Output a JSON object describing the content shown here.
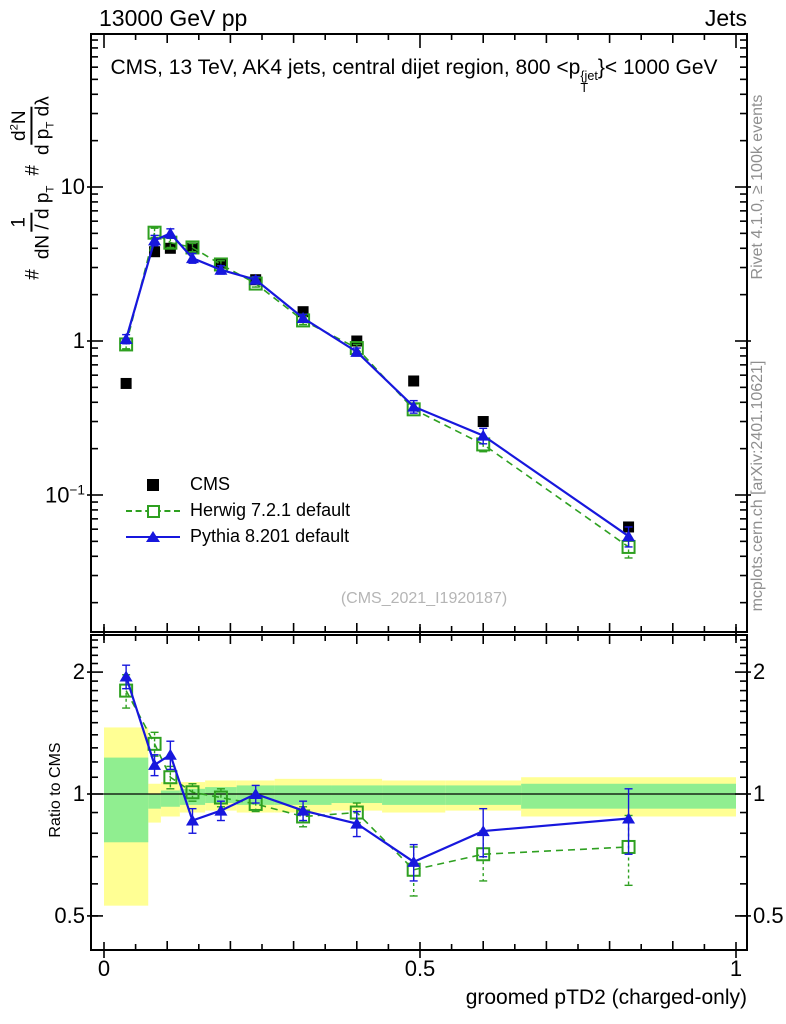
{
  "header": {
    "beam": "13000 GeV pp",
    "process": "Jets"
  },
  "title": {
    "prefix": "CMS, 13 TeV, AK4 jets, central dijet region, 800 <p",
    "sup": "{jet",
    "sub": "T",
    "suffix": "}< 1000 GeV"
  },
  "ylabel": {
    "hash1": "#",
    "frac1": {
      "num": "1",
      "den": "dN / d p",
      "den_sub": "T"
    },
    "hash2": "#",
    "frac2": {
      "num_a": "d",
      "num_sup": "2",
      "num_b": "N",
      "den_a": "d p",
      "den_sub": "T",
      "den_b": " dλ"
    }
  },
  "axes": {
    "x": {
      "tick_labels": [
        "0",
        "0.5",
        "1"
      ],
      "label": "groomed pTD2 (charged-only)"
    },
    "y_main": {
      "tick_top": "10",
      "tick_mid": "1",
      "tick_low_base": "10",
      "tick_low_sup": "−1"
    },
    "y_ratio": {
      "tick_labels": [
        "2",
        "1",
        "0.5"
      ],
      "label": "Ratio to CMS"
    }
  },
  "legend": {
    "items": [
      {
        "label": "CMS",
        "marker": "black-filled-square"
      },
      {
        "label": "Herwig 7.2.1 default",
        "marker": "green-dashed-line-open-square"
      },
      {
        "label": "Pythia 8.201 default",
        "marker": "blue-solid-line-filled-triangle"
      }
    ]
  },
  "watermark": "(CMS_2021_I1920187)",
  "sidebar": {
    "top": "Rivet 4.1.0, ≥ 100k events",
    "bottom": "mcplots.cern.ch [arXiv:2401.10621]"
  },
  "colors": {
    "cms": "#000000",
    "herwig": "#2ea020",
    "pythia": "#1717dd",
    "band_yellow": "#ffff94",
    "band_green": "#90ee90",
    "side_text": "#8f8f8f",
    "watermark": "#b5b5b5"
  },
  "chart_data": {
    "type": "line",
    "title": "CMS, 13 TeV, AK4 jets, central dijet region, 800 < pT{jet} < 1000 GeV",
    "xlabel": "groomed pTD2 (charged-only)",
    "ylabel": "# 1/(dN/dpT) # d2N/(dpT dlambda)",
    "xlim": [
      -0.02,
      1.017
    ],
    "ylim_main": [
      0.013,
      100
    ],
    "ylim_ratio": [
      0.41,
      2.48
    ],
    "x": [
      0.035,
      0.08,
      0.105,
      0.14,
      0.185,
      0.24,
      0.315,
      0.4,
      0.49,
      0.6,
      0.83
    ],
    "bin_edges": [
      0,
      0.07,
      0.09,
      0.12,
      0.16,
      0.21,
      0.27,
      0.36,
      0.44,
      0.54,
      0.66,
      1.0
    ],
    "series": [
      {
        "name": "CMS",
        "values": [
          0.53,
          3.8,
          4.0,
          4.0,
          3.2,
          2.5,
          1.55,
          1.0,
          0.55,
          0.3,
          0.062
        ],
        "yerr": [
          0,
          0,
          0,
          0,
          0,
          0,
          0,
          0,
          0,
          0,
          0
        ]
      },
      {
        "name": "Herwig 7.2.1 default",
        "values": [
          0.95,
          5.05,
          4.35,
          4.05,
          3.14,
          2.36,
          1.36,
          0.9,
          0.36,
          0.213,
          0.046
        ],
        "yerr": [
          0.06,
          0.35,
          0.3,
          0.25,
          0.18,
          0.12,
          0.08,
          0.05,
          0.03,
          0.022,
          0.007
        ]
      },
      {
        "name": "Pythia 8.201 default",
        "values": [
          1.03,
          4.5,
          5.0,
          3.45,
          2.9,
          2.5,
          1.41,
          0.85,
          0.375,
          0.243,
          0.054
        ],
        "yerr": [
          0.07,
          0.35,
          0.35,
          0.25,
          0.18,
          0.12,
          0.08,
          0.05,
          0.035,
          0.028,
          0.008
        ]
      }
    ],
    "ratio": {
      "ylabel": "Ratio to CMS",
      "series": [
        {
          "name": "Herwig 7.2.1 default",
          "values": [
            1.8,
            1.33,
            1.1,
            1.01,
            0.98,
            0.945,
            0.88,
            0.9,
            0.65,
            0.71,
            0.74
          ],
          "yerr": [
            0.17,
            0.09,
            0.07,
            0.05,
            0.05,
            0.04,
            0.05,
            0.05,
            0.09,
            0.1,
            0.145
          ]
        },
        {
          "name": "Pythia 8.201 default",
          "values": [
            1.95,
            1.18,
            1.25,
            0.86,
            0.91,
            1.0,
            0.91,
            0.845,
            0.68,
            0.81,
            0.87
          ],
          "yerr": [
            0.13,
            0.07,
            0.1,
            0.06,
            0.05,
            0.05,
            0.05,
            0.06,
            0.07,
            0.11,
            0.16
          ]
        }
      ],
      "reference_line": 1.0,
      "bands": {
        "yellow": [
          [
            0.53,
            1.46
          ],
          [
            0.85,
            1.06
          ],
          [
            0.88,
            1.07
          ],
          [
            0.9,
            1.07
          ],
          [
            0.91,
            1.08
          ],
          [
            0.9,
            1.08
          ],
          [
            0.9,
            1.09
          ],
          [
            0.91,
            1.09
          ],
          [
            0.9,
            1.08
          ],
          [
            0.91,
            1.08
          ],
          [
            0.88,
            1.1
          ]
        ],
        "green": [
          [
            0.76,
            1.23
          ],
          [
            0.92,
            1.0
          ],
          [
            0.93,
            1.02
          ],
          [
            0.94,
            1.03
          ],
          [
            0.95,
            1.04
          ],
          [
            0.94,
            1.05
          ],
          [
            0.94,
            1.05
          ],
          [
            0.95,
            1.05
          ],
          [
            0.94,
            1.05
          ],
          [
            0.94,
            1.05
          ],
          [
            0.92,
            1.06
          ]
        ]
      }
    }
  }
}
